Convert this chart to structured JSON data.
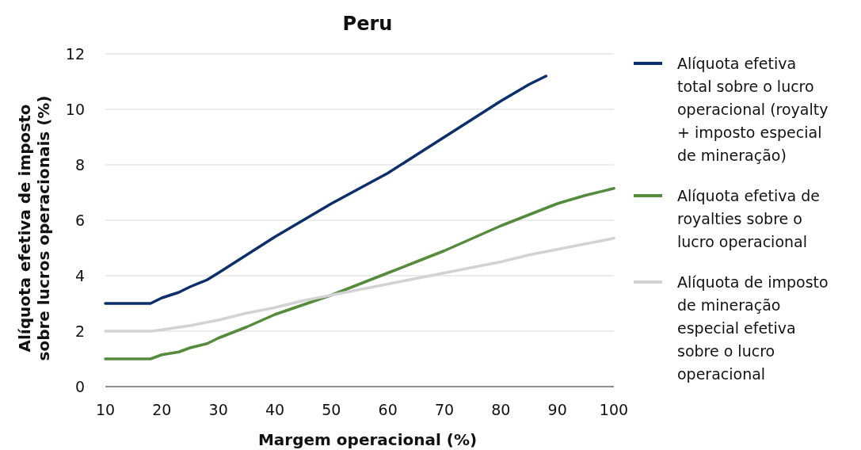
{
  "chart_data": {
    "type": "line",
    "title": "Peru",
    "xlabel": "Margem operacional (%)",
    "ylabel": "Alíquota efetiva de imposto sobre lucros operacionais (%)",
    "xlim": [
      10,
      100
    ],
    "xticks": [
      10,
      20,
      30,
      40,
      50,
      60,
      70,
      80,
      90,
      100
    ],
    "ylim": [
      0,
      12
    ],
    "yticks": [
      0,
      2,
      4,
      6,
      8,
      10,
      12
    ],
    "grid": "y",
    "legend": "right",
    "line_style": "solid",
    "marker": "none",
    "series": [
      {
        "name": "Alíquota efetiva total sobre o lucro operacional (royalty + imposto especial de mineração)",
        "color": "#0b2f6b",
        "x": [
          10,
          18,
          20,
          23,
          25,
          28,
          30,
          35,
          40,
          45,
          50,
          55,
          60,
          65,
          70,
          75,
          80,
          85,
          88
        ],
        "values": [
          3,
          3,
          3.2,
          3.4,
          3.6,
          3.85,
          4.1,
          4.75,
          5.4,
          6.0,
          6.6,
          7.15,
          7.7,
          8.35,
          9.0,
          9.65,
          10.3,
          10.9,
          11.2
        ]
      },
      {
        "name": "Alíquota efetiva de royalties sobre o lucro operacional",
        "color": "#548c3c",
        "x": [
          10,
          18,
          20,
          23,
          25,
          28,
          30,
          35,
          40,
          45,
          50,
          55,
          60,
          65,
          70,
          75,
          80,
          85,
          90,
          95,
          100
        ],
        "values": [
          1,
          1,
          1.15,
          1.25,
          1.4,
          1.55,
          1.75,
          2.15,
          2.6,
          2.95,
          3.3,
          3.7,
          4.1,
          4.5,
          4.9,
          5.35,
          5.8,
          6.2,
          6.6,
          6.9,
          7.15
        ]
      },
      {
        "name": "Alíquota de imposto de mineração especial efetiva sobre o lucro operacional",
        "color": "#d3d3d3",
        "x": [
          10,
          18,
          20,
          25,
          30,
          35,
          40,
          45,
          50,
          55,
          60,
          65,
          70,
          75,
          80,
          85,
          90,
          95,
          100
        ],
        "values": [
          2,
          2,
          2.05,
          2.2,
          2.4,
          2.65,
          2.85,
          3.1,
          3.3,
          3.5,
          3.7,
          3.9,
          4.1,
          4.3,
          4.5,
          4.75,
          4.95,
          5.15,
          5.35
        ]
      }
    ]
  }
}
